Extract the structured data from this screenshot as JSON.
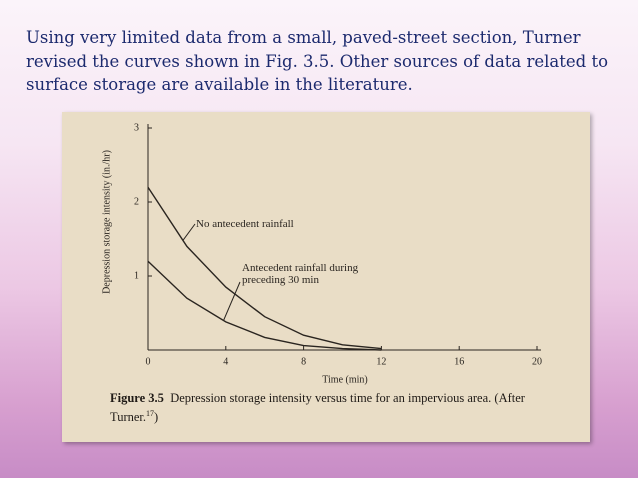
{
  "slide_text": "Using very limited data from a small, paved-street section, Turner revised the curves shown in Fig. 3.5. Other sources of data related to surface storage are available in the literature.",
  "chart_data": {
    "type": "line",
    "x_label": "Time (min)",
    "y_label": "Depression storage intensity (in./hr)",
    "x": [
      0,
      2,
      4,
      6,
      8,
      10,
      12
    ],
    "series": [
      {
        "name": "No antecedent rainfall",
        "color": "#2a2520",
        "values": [
          2.2,
          1.4,
          0.85,
          0.45,
          0.2,
          0.07,
          0.02
        ]
      },
      {
        "name": "Antecedent rainfall during preceding 30 min",
        "color": "#2a2520",
        "values": [
          1.2,
          0.7,
          0.38,
          0.17,
          0.06,
          0.02,
          0
        ]
      }
    ],
    "xlim": [
      0,
      20
    ],
    "xticks": [
      0,
      4,
      8,
      12,
      16,
      20
    ],
    "ylim": [
      0,
      3
    ],
    "yticks": [
      1,
      2,
      3
    ]
  },
  "caption": {
    "label": "Figure 3.5",
    "text": "Depression storage intensity versus time for an impervious area. (After Turner.",
    "ref": "17",
    "close": ")"
  }
}
